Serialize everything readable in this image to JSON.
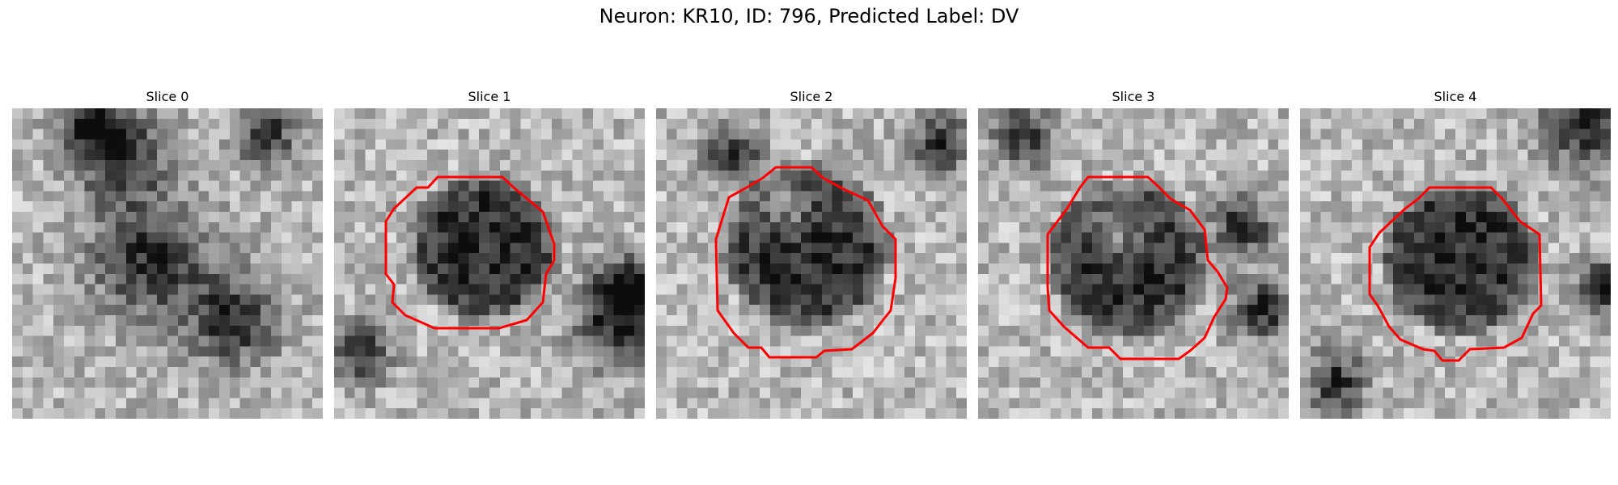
{
  "figure": {
    "title": "Neuron: KR10, ID: 796, Predicted Label: DV",
    "contour_color": "#ff0000",
    "panels": [
      {
        "title": "Slice 0",
        "has_contour": false
      },
      {
        "title": "Slice 1",
        "has_contour": true
      },
      {
        "title": "Slice 2",
        "has_contour": true
      },
      {
        "title": "Slice 3",
        "has_contour": true
      },
      {
        "title": "Slice 4",
        "has_contour": true
      }
    ]
  }
}
